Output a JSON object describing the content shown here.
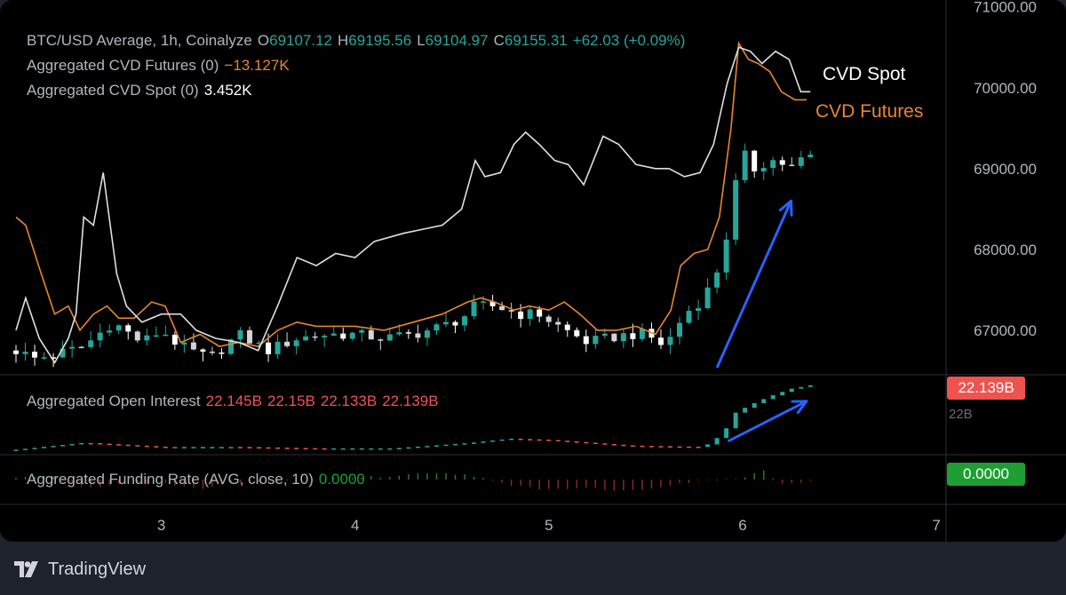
{
  "legend": {
    "symbol": "BTC/USD Average, 1h, Coinalyze",
    "o_label": "O",
    "o_value": "69107.12",
    "h_label": "H",
    "h_value": "69195.56",
    "l_label": "L",
    "l_value": "69104.97",
    "c_label": "C",
    "c_value": "69155.31",
    "change": "+62.03 (+0.09%)",
    "cvd_futures_label": "Aggregated CVD Futures (0)",
    "cvd_futures_value": "−13.127K",
    "cvd_spot_label": "Aggregated CVD Spot (0)",
    "cvd_spot_value": "3.452K",
    "oi_label": "Aggregated Open Interest",
    "oi_values": [
      "22.145B",
      "22.15B",
      "22.133B",
      "22.139B"
    ],
    "funding_label": "Aggregated Funding Rate (AVG, close, 10)",
    "funding_value": "0.0000"
  },
  "annotations": {
    "cvd_spot": "CVD Spot",
    "cvd_futures": "CVD Futures"
  },
  "badges": {
    "open_interest": "22.139B",
    "funding": "0.0000",
    "oi_axis_partial": "22B"
  },
  "colors": {
    "up": "#26a69a",
    "down": "#ef5350",
    "cvd_spot": "#e0e0e0",
    "cvd_futures": "#e8872f",
    "arrow": "#2962ff",
    "funding_badge": "#1e9e33",
    "oi_badge": "#ef5350"
  },
  "footer": {
    "brand": "TradingView"
  },
  "chart_data": [
    {
      "type": "candlestick",
      "title": "BTC/USD Average, 1h, Coinalyze",
      "x_ticks": [
        "3",
        "4",
        "5",
        "6",
        "7"
      ],
      "x_tick_days": [
        3,
        4,
        5,
        6,
        7
      ],
      "x_range": [
        2.25,
        7.05
      ],
      "y_ticks": [
        "71000.00",
        "70000.00",
        "69000.00",
        "68000.00",
        "67000.00"
      ],
      "y_tick_values": [
        71000,
        70000,
        69000,
        68000,
        67000
      ],
      "ylim": [
        66450,
        71030
      ],
      "price_anchors": [
        [
          2.25,
          66750
        ],
        [
          2.35,
          66650
        ],
        [
          2.45,
          66700
        ],
        [
          2.6,
          66800
        ],
        [
          2.75,
          67100
        ],
        [
          2.9,
          66850
        ],
        [
          3.0,
          67000
        ],
        [
          3.1,
          66800
        ],
        [
          3.25,
          66650
        ],
        [
          3.4,
          66950
        ],
        [
          3.55,
          66750
        ],
        [
          3.7,
          66900
        ],
        [
          3.85,
          66950
        ],
        [
          4.0,
          66950
        ],
        [
          4.15,
          66900
        ],
        [
          4.3,
          66950
        ],
        [
          4.45,
          67050
        ],
        [
          4.55,
          67150
        ],
        [
          4.62,
          67300
        ],
        [
          4.72,
          67300
        ],
        [
          4.85,
          67200
        ],
        [
          4.95,
          67200
        ],
        [
          5.05,
          67050
        ],
        [
          5.2,
          66850
        ],
        [
          5.3,
          66900
        ],
        [
          5.42,
          66950
        ],
        [
          5.5,
          66950
        ],
        [
          5.6,
          66800
        ],
        [
          5.7,
          67200
        ],
        [
          5.8,
          67400
        ],
        [
          5.88,
          67800
        ],
        [
          5.93,
          68300
        ],
        [
          5.97,
          68900
        ],
        [
          6.02,
          69200
        ],
        [
          6.07,
          68950
        ],
        [
          6.12,
          69100
        ],
        [
          6.18,
          69100
        ],
        [
          6.25,
          69000
        ],
        [
          6.3,
          69100
        ],
        [
          6.35,
          69155
        ]
      ],
      "cvd_spot_line": [
        [
          2.25,
          67000
        ],
        [
          2.3,
          67400
        ],
        [
          2.37,
          66900
        ],
        [
          2.45,
          66600
        ],
        [
          2.52,
          66900
        ],
        [
          2.56,
          67200
        ],
        [
          2.6,
          68400
        ],
        [
          2.65,
          68300
        ],
        [
          2.7,
          68950
        ],
        [
          2.77,
          67700
        ],
        [
          2.82,
          67300
        ],
        [
          2.9,
          67100
        ],
        [
          3.0,
          67200
        ],
        [
          3.1,
          67200
        ],
        [
          3.18,
          67000
        ],
        [
          3.28,
          66900
        ],
        [
          3.4,
          66850
        ],
        [
          3.5,
          66750
        ],
        [
          3.6,
          67300
        ],
        [
          3.7,
          67900
        ],
        [
          3.8,
          67800
        ],
        [
          3.9,
          67950
        ],
        [
          4.0,
          67900
        ],
        [
          4.1,
          68100
        ],
        [
          4.25,
          68200
        ],
        [
          4.35,
          68250
        ],
        [
          4.45,
          68300
        ],
        [
          4.55,
          68500
        ],
        [
          4.62,
          69100
        ],
        [
          4.67,
          68900
        ],
        [
          4.75,
          68950
        ],
        [
          4.82,
          69300
        ],
        [
          4.88,
          69450
        ],
        [
          4.95,
          69300
        ],
        [
          5.03,
          69100
        ],
        [
          5.1,
          69050
        ],
        [
          5.18,
          68800
        ],
        [
          5.28,
          69400
        ],
        [
          5.36,
          69300
        ],
        [
          5.45,
          69050
        ],
        [
          5.55,
          69000
        ],
        [
          5.62,
          69000
        ],
        [
          5.7,
          68900
        ],
        [
          5.78,
          68950
        ],
        [
          5.85,
          69300
        ],
        [
          5.92,
          70050
        ],
        [
          5.98,
          70500
        ],
        [
          6.04,
          70450
        ],
        [
          6.1,
          70300
        ],
        [
          6.17,
          70450
        ],
        [
          6.24,
          70350
        ],
        [
          6.3,
          69950
        ],
        [
          6.35,
          69950
        ]
      ],
      "cvd_futures_line": [
        [
          2.25,
          68400
        ],
        [
          2.3,
          68300
        ],
        [
          2.38,
          67700
        ],
        [
          2.45,
          67200
        ],
        [
          2.52,
          67300
        ],
        [
          2.58,
          67000
        ],
        [
          2.65,
          67200
        ],
        [
          2.72,
          67300
        ],
        [
          2.78,
          67150
        ],
        [
          2.86,
          67150
        ],
        [
          2.95,
          67350
        ],
        [
          3.02,
          67300
        ],
        [
          3.1,
          66850
        ],
        [
          3.2,
          66950
        ],
        [
          3.3,
          66800
        ],
        [
          3.4,
          66850
        ],
        [
          3.5,
          66800
        ],
        [
          3.6,
          67000
        ],
        [
          3.7,
          67100
        ],
        [
          3.8,
          67050
        ],
        [
          3.9,
          67050
        ],
        [
          4.0,
          67050
        ],
        [
          4.15,
          67000
        ],
        [
          4.3,
          67100
        ],
        [
          4.45,
          67200
        ],
        [
          4.58,
          67350
        ],
        [
          4.65,
          67400
        ],
        [
          4.72,
          67350
        ],
        [
          4.82,
          67250
        ],
        [
          4.9,
          67300
        ],
        [
          5.0,
          67250
        ],
        [
          5.08,
          67350
        ],
        [
          5.16,
          67200
        ],
        [
          5.25,
          67000
        ],
        [
          5.35,
          67000
        ],
        [
          5.45,
          67050
        ],
        [
          5.55,
          66950
        ],
        [
          5.63,
          67250
        ],
        [
          5.68,
          67800
        ],
        [
          5.75,
          67950
        ],
        [
          5.82,
          68000
        ],
        [
          5.88,
          68400
        ],
        [
          5.94,
          69500
        ],
        [
          5.98,
          70550
        ],
        [
          6.03,
          70350
        ],
        [
          6.08,
          70300
        ],
        [
          6.14,
          70200
        ],
        [
          6.2,
          69950
        ],
        [
          6.27,
          69850
        ],
        [
          6.33,
          69850
        ]
      ],
      "annotation_arrow": {
        "from": [
          5.87,
          66550
        ],
        "to": [
          6.25,
          68600
        ]
      }
    },
    {
      "type": "bar",
      "title": "Aggregated Open Interest",
      "values_label": [
        "22.145B",
        "22.15B",
        "22.133B",
        "22.139B"
      ],
      "last_value": "22.139B",
      "relative_level": [
        [
          2.25,
          0.02
        ],
        [
          2.6,
          0.12
        ],
        [
          3.0,
          0.06
        ],
        [
          3.4,
          0.06
        ],
        [
          3.8,
          0.04
        ],
        [
          4.2,
          0.04
        ],
        [
          4.6,
          0.12
        ],
        [
          4.8,
          0.18
        ],
        [
          5.0,
          0.16
        ],
        [
          5.4,
          0.08
        ],
        [
          5.8,
          0.06
        ],
        [
          5.9,
          0.25
        ],
        [
          5.96,
          0.55
        ],
        [
          6.05,
          0.68
        ],
        [
          6.15,
          0.8
        ],
        [
          6.25,
          0.9
        ],
        [
          6.35,
          0.95
        ]
      ],
      "annotation_arrow": {
        "from": [
          5.93,
          0.15
        ],
        "to": [
          6.33,
          0.72
        ]
      }
    },
    {
      "type": "bar",
      "title": "Aggregated Funding Rate (AVG, close, 10)",
      "last_value": "0.0000",
      "relative_level": [
        [
          2.25,
          0.08
        ],
        [
          2.45,
          0.15
        ],
        [
          2.6,
          -0.35
        ],
        [
          2.8,
          -0.2
        ],
        [
          3.0,
          -0.15
        ],
        [
          3.2,
          -0.45
        ],
        [
          3.4,
          -0.1
        ],
        [
          3.7,
          -0.05
        ],
        [
          4.0,
          0.1
        ],
        [
          4.2,
          0.15
        ],
        [
          4.4,
          0.35
        ],
        [
          4.6,
          0.2
        ],
        [
          4.8,
          -0.3
        ],
        [
          5.0,
          -0.45
        ],
        [
          5.2,
          -0.35
        ],
        [
          5.4,
          -0.55
        ],
        [
          5.6,
          -0.3
        ],
        [
          5.8,
          -0.05
        ],
        [
          6.0,
          0.05
        ],
        [
          6.1,
          0.45
        ],
        [
          6.2,
          -0.2
        ],
        [
          6.35,
          -0.1
        ]
      ]
    }
  ]
}
